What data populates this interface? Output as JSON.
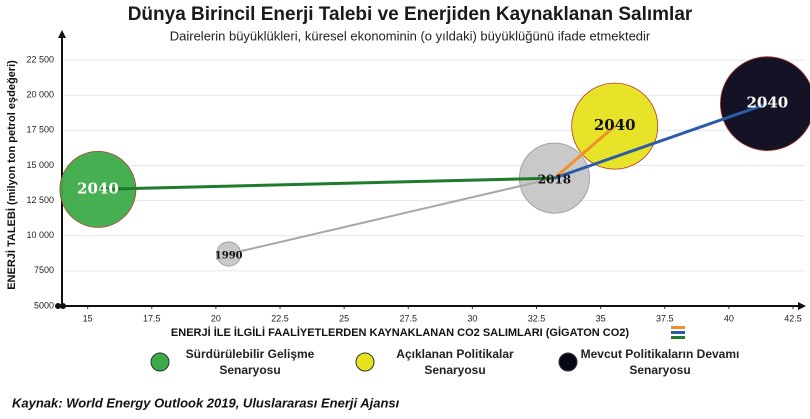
{
  "chart_data": {
    "type": "bubble",
    "title": "Dünya Birincil Enerji Talebi ve Enerjiden Kaynaklanan Salımlar",
    "subtitle": "Dairelerin büyüklükleri, küresel ekonominin (o yıldaki) büyüklüğünü ifade etmektedir",
    "xlabel": "ENERJİ İLE İLGİLİ FAALİYETLERDEN KAYNAKLANAN CO2 SALIMLARI (GİGATON CO2)",
    "ylabel": "ENERJİ TALEBİ (milyon ton petrol eşdeğeri)",
    "source": "Kaynak: World Energy Outlook 2019, Uluslararası Enerji Ajansı",
    "xlim": [
      14,
      42.5
    ],
    "xticks": [
      15,
      17.5,
      20,
      22.5,
      25,
      27.5,
      30,
      32.5,
      35,
      37.5,
      40,
      42.5
    ],
    "ylim": [
      5000,
      24000
    ],
    "yticks": [
      5000,
      7500,
      {
        "value": 10000,
        "label": "10 000"
      },
      {
        "value": 12500,
        "label": "12 500"
      },
      {
        "value": 15000,
        "label": "15 000"
      },
      {
        "value": 17500,
        "label": "17 500"
      },
      {
        "value": 20000,
        "label": "20 000"
      },
      {
        "value": 22500,
        "label": "22 500"
      }
    ],
    "grid": true,
    "history": {
      "color": "#c4c4c4",
      "line_color": "#a8a8a8",
      "labels": [
        "1990",
        "2018"
      ],
      "x": [
        20.5,
        33.2
      ],
      "y": [
        8700,
        14100
      ],
      "sizes": [
        12,
        100
      ]
    },
    "series": [
      {
        "name": "Sürdürülebilir Gelişme Senaryosu",
        "color": "#3dab48",
        "line_color": "#1f7a2b",
        "label_color": "#ffffff",
        "label": "2040",
        "x": 15.4,
        "y": 13300,
        "size": 118
      },
      {
        "name": "Açıklanan Politikalar Senaryosu",
        "color": "#e6e21e",
        "line_color": "#f0902a",
        "label_color": "#111111",
        "label": "2040",
        "x": 35.55,
        "y": 17800,
        "size": 151
      },
      {
        "name": "Mevcut Politikaların Devamı Senaryosu",
        "color": "#07071a",
        "line_color": "#2a5ca8",
        "label_color": "#ffffff",
        "label": "2040",
        "x": 41.5,
        "y": 19400,
        "size": 180
      }
    ]
  }
}
